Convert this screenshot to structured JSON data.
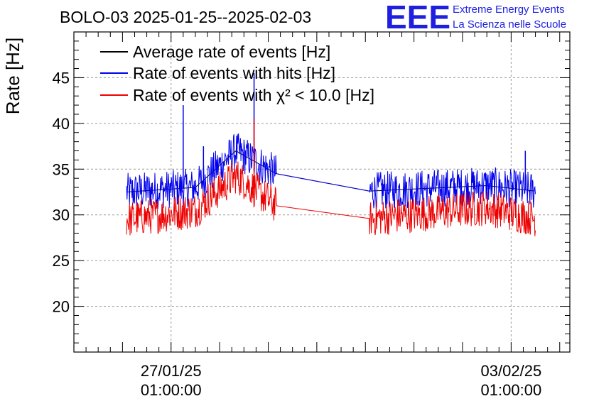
{
  "chart_data": {
    "type": "line",
    "title": "BOLO-03 2025-01-25--2025-02-03",
    "ylabel": "Rate [Hz]",
    "xlabel": "",
    "ylim": [
      15,
      50
    ],
    "yticks": [
      20,
      25,
      30,
      35,
      40,
      45
    ],
    "x_tick_labels": [
      {
        "date": "2025-01-27",
        "line1": "27/01/25",
        "line2": "01:00:00"
      },
      {
        "date": "2025-02-03",
        "line1": "03/02/25",
        "line2": "01:00:00"
      }
    ],
    "grid": true,
    "legend_position": "top-left",
    "series": [
      {
        "name": "Average rate of events [Hz]",
        "color": "#000000",
        "points": [
          {
            "date": "2025-01-26T02:00",
            "value": 32.5
          },
          {
            "date": "2025-01-27T12:00",
            "value": 33.0
          },
          {
            "date": "2025-01-28T08:00",
            "value": 37.0
          },
          {
            "date": "2025-01-29T04:00",
            "value": 34.5
          },
          {
            "date": "2025-01-31T02:00",
            "value": 32.6
          },
          {
            "date": "2025-02-02T12:00",
            "value": 33.2
          },
          {
            "date": "2025-02-03T12:00",
            "value": 32.6
          }
        ]
      },
      {
        "name": "Rate of events with hits [Hz]",
        "color": "#0000ee",
        "points": [
          {
            "date": "2025-01-26T02:00",
            "value": 32.5
          },
          {
            "date": "2025-01-27T12:00",
            "value": 33.0
          },
          {
            "date": "2025-01-28T08:00",
            "value": 37.0
          },
          {
            "date": "2025-01-29T04:00",
            "value": 34.5
          },
          {
            "date": "2025-01-31T02:00",
            "value": 32.6
          },
          {
            "date": "2025-02-02T12:00",
            "value": 33.2
          },
          {
            "date": "2025-02-03T12:00",
            "value": 32.6
          }
        ],
        "spikes": [
          {
            "date": "2025-01-27T06:00",
            "value": 42.0
          },
          {
            "date": "2025-01-27T16:00",
            "value": 37.5
          },
          {
            "date": "2025-01-28T17:00",
            "value": 45.5
          },
          {
            "date": "2025-02-03T07:00",
            "value": 37.0
          }
        ]
      },
      {
        "name": "Rate of events with χ² < 10.0 [Hz]",
        "color": "#ee0000",
        "points": [
          {
            "date": "2025-01-26T02:00",
            "value": 29.5
          },
          {
            "date": "2025-01-27T12:00",
            "value": 30.5
          },
          {
            "date": "2025-01-28T08:00",
            "value": 34.3
          },
          {
            "date": "2025-01-29T04:00",
            "value": 31.0
          },
          {
            "date": "2025-01-31T02:00",
            "value": 29.6
          },
          {
            "date": "2025-02-02T12:00",
            "value": 30.8
          },
          {
            "date": "2025-02-03T12:00",
            "value": 29.6
          }
        ],
        "spikes": [
          {
            "date": "2025-01-28T17:00",
            "value": 40.5
          }
        ]
      }
    ]
  },
  "logo": {
    "letters": "EEE",
    "line1": "Extreme Energy Events",
    "line2": "La Scienza nelle Scuole"
  }
}
